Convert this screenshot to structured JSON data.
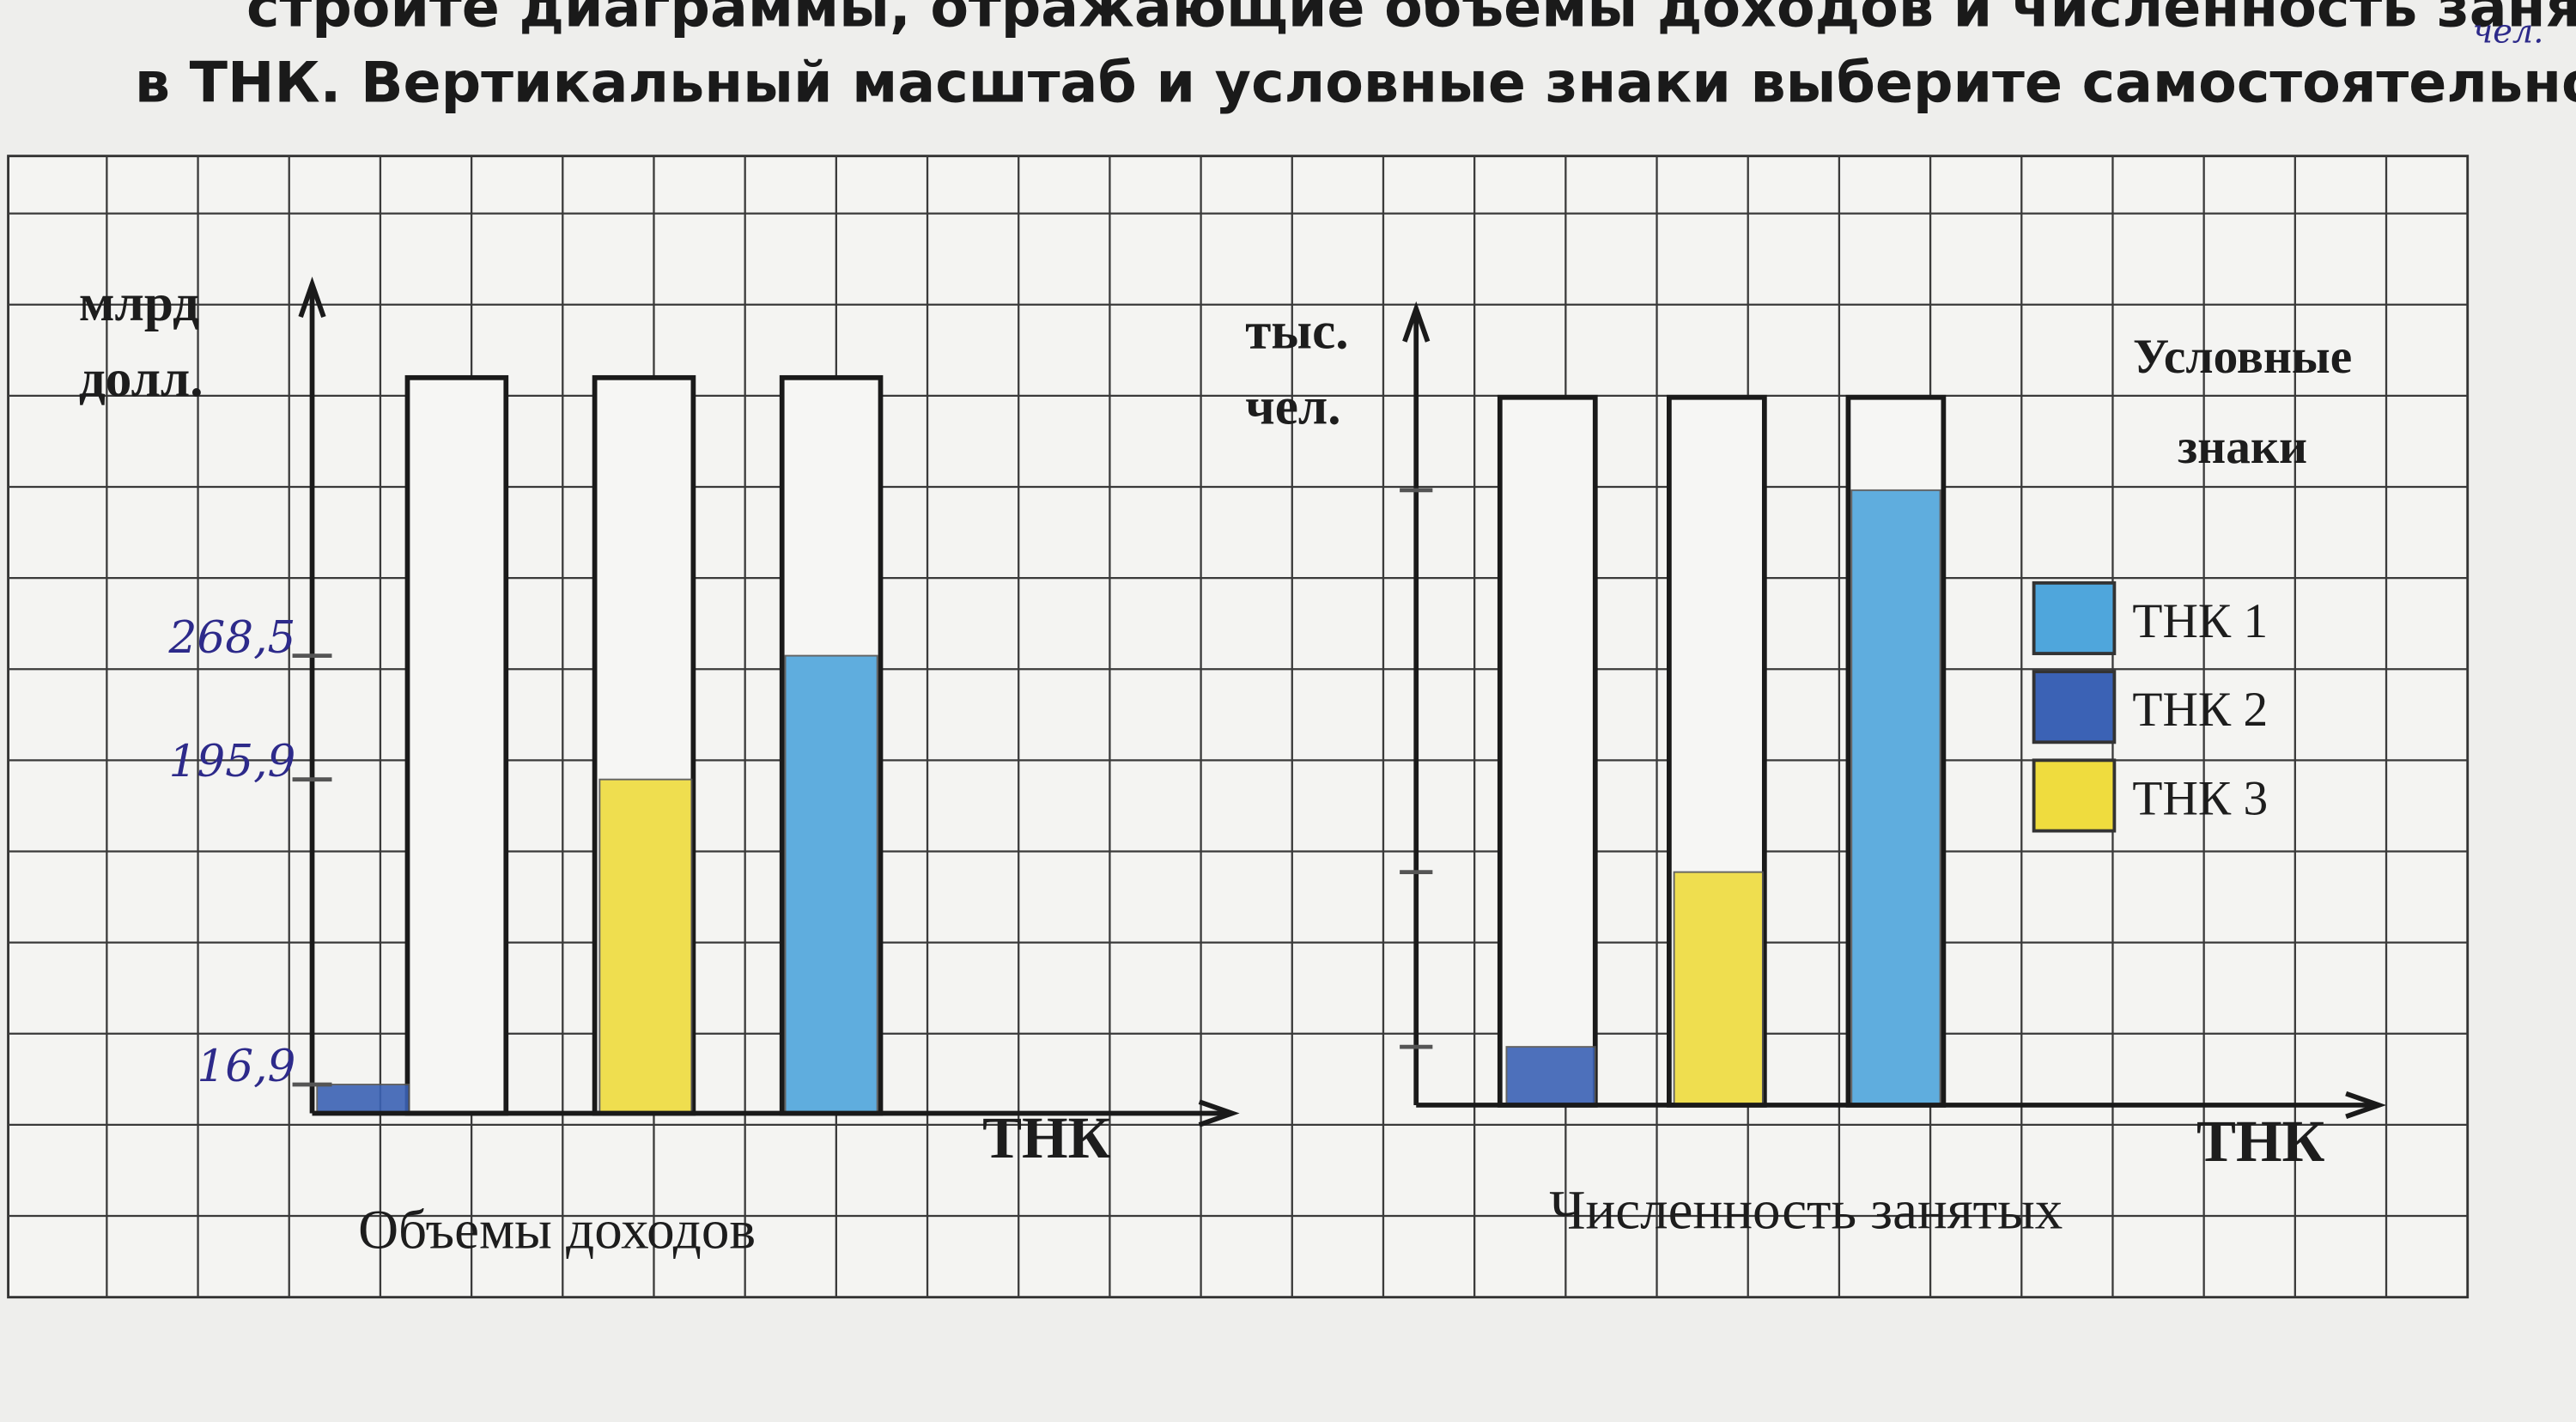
{
  "header": {
    "line1": "стройте диаграммы, отражающие объемы доходов и численность занятых",
    "line2": "в ТНК. Вертикальный масштаб и условные знаки выберите самостоятельно.",
    "note": "чел."
  },
  "legend": {
    "title": [
      "Условные",
      "знаки"
    ],
    "entries": [
      {
        "name": "ТНК 1",
        "color": "#4fa6dc"
      },
      {
        "name": "ТНК 2",
        "color": "#3b62b5"
      },
      {
        "name": "ТНК 3",
        "color": "#efdc3e"
      }
    ]
  },
  "chart_data": [
    {
      "type": "bar",
      "title": "Объемы доходов",
      "y_label": [
        "млрд",
        "долл."
      ],
      "x_label": "ТНК",
      "values": [
        16.9,
        195.9,
        268.5
      ],
      "colors": [
        "#3b62b5",
        "#efdc3e",
        "#4fa6dc"
      ],
      "ylim": [
        0,
        475
      ],
      "yticks": [
        {
          "value": 16.9,
          "label": "16,9"
        },
        {
          "value": 195.9,
          "label": "195,9"
        },
        {
          "value": 268.5,
          "label": "268,5"
        }
      ]
    },
    {
      "type": "bar",
      "title": "Численность занятых",
      "y_label": [
        "тыс.",
        "чел."
      ],
      "x_label": "ТНК",
      "values": [
        180,
        720,
        1900
      ],
      "colors": [
        "#3b62b5",
        "#efdc3e",
        "#4fa6dc"
      ],
      "ylim": [
        0,
        2400
      ]
    }
  ]
}
